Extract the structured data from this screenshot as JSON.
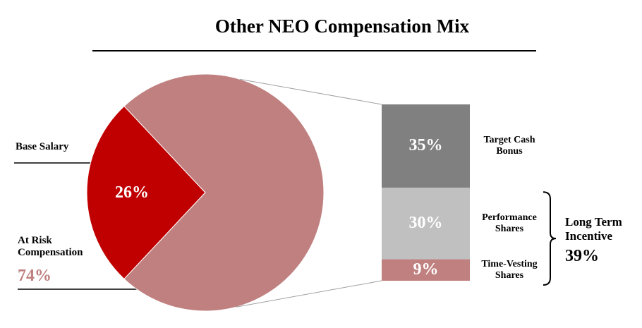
{
  "chart_data": {
    "type": "pie",
    "title": "Other NEO Compensation Mix",
    "categories": [
      "Base Salary",
      "At Risk Compensation"
    ],
    "values": [
      26,
      74
    ],
    "value_labels": [
      "26%",
      "74%"
    ],
    "colors": [
      "#c00000",
      "#c08080"
    ],
    "breakdown": {
      "type": "bar",
      "categories": [
        "Target Cash Bonus",
        "Performance Shares",
        "Time-Vesting Shares"
      ],
      "values": [
        35,
        30,
        9
      ],
      "value_labels": [
        "35%",
        "30%",
        "9%"
      ],
      "colors": [
        "#808080",
        "#c0c0c0",
        "#c08080"
      ]
    },
    "group": {
      "name": "Long Term Incentive",
      "value": 39,
      "value_label": "39%"
    }
  }
}
